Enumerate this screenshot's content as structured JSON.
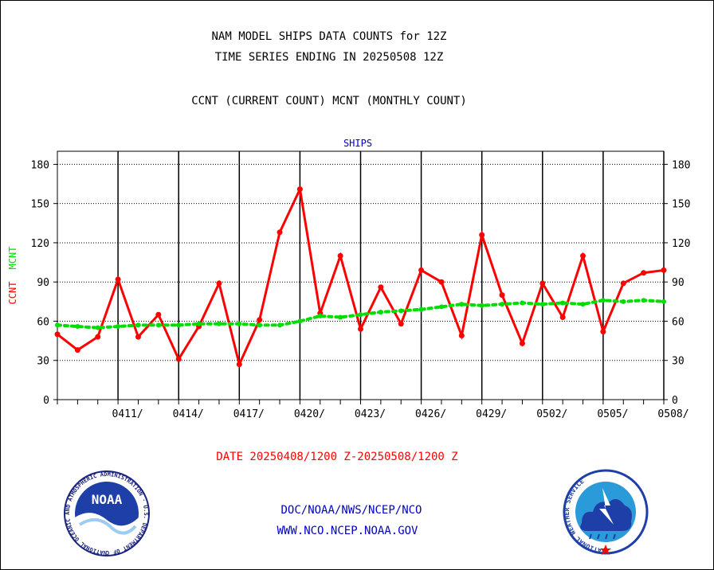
{
  "titles": {
    "line1": "NAM MODEL SHIPS DATA COUNTS for 12Z",
    "line2": "TIME SERIES ENDING IN 20250508 12Z",
    "line3": "CCNT (CURRENT COUNT) MCNT (MONTHLY COUNT)"
  },
  "footer": {
    "date_range": "DATE 20250408/1200 Z-20250508/1200 Z",
    "org": "DOC/NOAA/NWS/NCEP/NCO",
    "url": "WWW.NCO.NCEP.NOAA.GOV"
  },
  "logos": {
    "noaa_text": "NOAA",
    "noaa_ring": "NATIONAL OCEANIC AND ATMOSPHERIC ADMINISTRATION · U.S. DEPARTMENT OF COMMERCE",
    "nws_ring": "NATIONAL WEATHER SERVICE"
  },
  "colors": {
    "ccnt": "#ff0000",
    "mcnt": "#00dd00",
    "panel_title": "#0000cc",
    "footer_blue": "#0000cc",
    "footer_red": "#ff0000"
  },
  "chart_data": {
    "type": "line",
    "title": "SHIPS",
    "ylabel_parts": [
      {
        "text": "CCNT",
        "color": "#ff0000"
      },
      {
        "text": "MCNT",
        "color": "#00dd00"
      }
    ],
    "ylim": [
      0,
      190
    ],
    "yticks": [
      0,
      30,
      60,
      90,
      120,
      150,
      180
    ],
    "xlim": [
      0,
      30
    ],
    "xticks": [
      {
        "x": 3,
        "label": "0411/"
      },
      {
        "x": 6,
        "label": "0414/"
      },
      {
        "x": 9,
        "label": "0417/"
      },
      {
        "x": 12,
        "label": "0420/"
      },
      {
        "x": 15,
        "label": "0423/"
      },
      {
        "x": 18,
        "label": "0426/"
      },
      {
        "x": 21,
        "label": "0429/"
      },
      {
        "x": 24,
        "label": "0502/"
      },
      {
        "x": 27,
        "label": "0505/"
      },
      {
        "x": 30,
        "label": "0508/"
      }
    ],
    "grid": true,
    "series": [
      {
        "name": "CCNT",
        "style": "solid",
        "color": "#ff0000",
        "x": [
          0,
          1,
          2,
          3,
          4,
          5,
          6,
          7,
          8,
          9,
          10,
          11,
          12,
          13,
          14,
          15,
          16,
          17,
          18,
          19,
          20,
          21,
          22,
          23,
          24,
          25,
          26,
          27,
          28,
          29,
          30
        ],
        "values": [
          50,
          38,
          48,
          92,
          48,
          65,
          31,
          56,
          89,
          27,
          61,
          128,
          161,
          66,
          110,
          54,
          86,
          58,
          99,
          90,
          49,
          126,
          80,
          43,
          89,
          63,
          110,
          52,
          89,
          97,
          99
        ]
      },
      {
        "name": "MCNT",
        "style": "dotted",
        "color": "#00dd00",
        "x": [
          0,
          1,
          2,
          3,
          4,
          5,
          6,
          7,
          8,
          9,
          10,
          11,
          12,
          13,
          14,
          15,
          16,
          17,
          18,
          19,
          20,
          21,
          22,
          23,
          24,
          25,
          26,
          27,
          28,
          29,
          30
        ],
        "values": [
          57,
          56,
          55,
          56,
          57,
          57,
          57,
          58,
          58,
          58,
          57,
          57,
          60,
          64,
          63,
          65,
          67,
          68,
          69,
          71,
          73,
          72,
          73,
          74,
          73,
          74,
          73,
          76,
          75,
          76,
          75
        ]
      }
    ]
  }
}
